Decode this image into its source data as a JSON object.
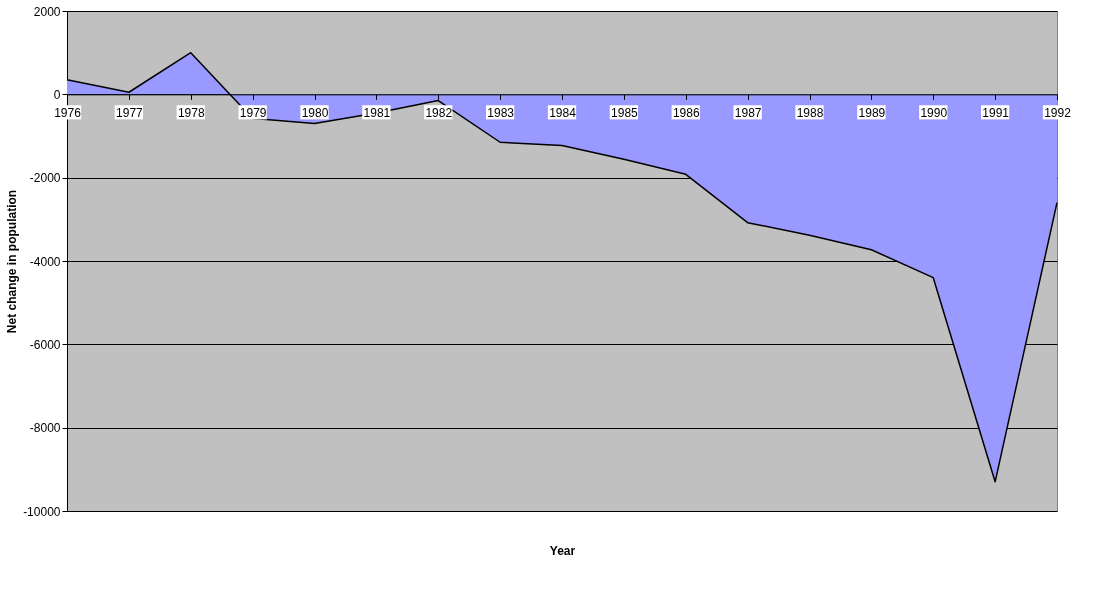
{
  "chart_data": {
    "type": "area",
    "xlabel": "Year",
    "ylabel": "Net change in population",
    "categories": [
      "1976",
      "1977",
      "1978",
      "1979",
      "1980",
      "1981",
      "1982",
      "1983",
      "1984",
      "1985",
      "1986",
      "1987",
      "1988",
      "1989",
      "1990",
      "1991",
      "1992"
    ],
    "series": [
      {
        "color": "#9999ff",
        "values": [
          350,
          50,
          1000,
          -580,
          -700,
          -450,
          -150,
          -1150,
          -1230,
          -1560,
          -1920,
          -3080,
          -3380,
          -3730,
          -4400,
          -9300,
          -2600
        ]
      }
    ],
    "ylim": [
      -10000,
      2000
    ],
    "yticks": [
      -10000,
      -8000,
      -6000,
      -4000,
      -2000,
      0,
      2000
    ],
    "grid": "y",
    "legend": false
  }
}
